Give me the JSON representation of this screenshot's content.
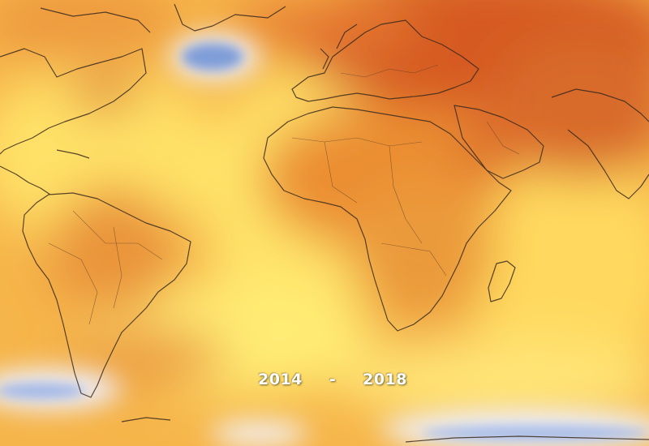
{
  "map": {
    "period": {
      "start_year": "2014",
      "separator": "-",
      "end_year": "2018"
    },
    "colors": {
      "warm_light": "#ffe66a",
      "warm_mid": "#f7b13f",
      "warm_strong": "#e8812d",
      "warm_deep": "#cf4d22",
      "cool_anomaly": "#8aa6dc",
      "cool_pale": "#eef1ff",
      "coastline": "#3b2a1c"
    }
  }
}
